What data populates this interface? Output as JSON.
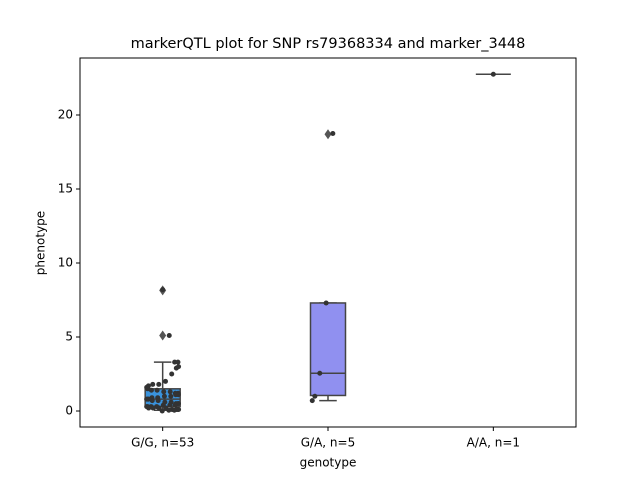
{
  "chart_data": {
    "type": "box",
    "title": "markerQTL plot for SNP rs79368334 and marker_3448",
    "x_label": "genotype",
    "y_label": "phenotype",
    "categories": [
      "G/G, n=53",
      "G/A, n=5",
      "A/A, n=1"
    ],
    "ylim": [
      -1.08,
      23.85
    ],
    "yticks": [
      0,
      5,
      10,
      15,
      20
    ],
    "boxes": [
      {
        "color": "#3a93dc",
        "whislo": 0.05,
        "q1": 0.3,
        "med": 0.8,
        "q3": 1.5,
        "whishi": 3.3,
        "fliers": [
          5.1,
          8.15
        ]
      },
      {
        "color": "#9090f0",
        "whislo": 0.7,
        "q1": 1.05,
        "med": 2.55,
        "q3": 7.3,
        "whishi": 7.3,
        "fliers": [
          18.7
        ]
      },
      {
        "color": "#3a93dc",
        "whislo": 22.75,
        "q1": 22.75,
        "med": 22.75,
        "q3": 22.75,
        "whishi": 22.75,
        "fliers": []
      }
    ],
    "points": [
      [
        8.2,
        5.1,
        3.3,
        3.3,
        3.0,
        2.9,
        2.5,
        2.0,
        1.8,
        1.8,
        1.7,
        1.6,
        1.5,
        1.4,
        1.4,
        1.3,
        1.3,
        1.2,
        1.2,
        1.1,
        1.1,
        1.0,
        1.0,
        0.9,
        0.9,
        0.8,
        0.8,
        0.8,
        0.7,
        0.7,
        0.6,
        0.6,
        0.5,
        0.5,
        0.5,
        0.4,
        0.4,
        0.4,
        0.3,
        0.3,
        0.3,
        0.3,
        0.2,
        0.2,
        0.2,
        0.2,
        0.1,
        0.1,
        0.1,
        0.1,
        0.05,
        0.05,
        0.0
      ],
      [
        18.75,
        7.3,
        2.55,
        1.0,
        0.7
      ],
      [
        22.75
      ]
    ],
    "point_color": "#333333"
  }
}
